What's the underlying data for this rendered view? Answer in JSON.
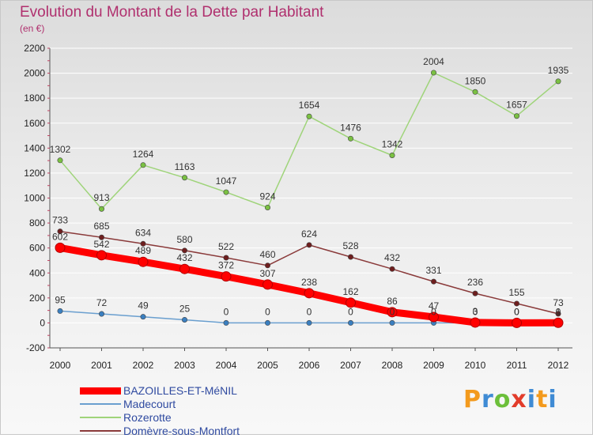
{
  "header": {
    "title": "Evolution du Montant de la Dette par Habitant",
    "subtitle": "(en €)"
  },
  "logo": {
    "text": "Proxiti"
  },
  "colors": {
    "title": "#b0306e",
    "legend_text": "#2f4aa0",
    "grid": "#ffffff",
    "axis": "#555555"
  },
  "chart_data": {
    "type": "line",
    "title": "Evolution du Montant de la Dette par Habitant",
    "subtitle": "(en €)",
    "xlabel": "",
    "ylabel": "",
    "x": [
      "2000",
      "2001",
      "2002",
      "2003",
      "2004",
      "2005",
      "2006",
      "2007",
      "2008",
      "2009",
      "2010",
      "2011",
      "2012"
    ],
    "ylim": [
      -200,
      2200
    ],
    "y_ticks": [
      -200,
      0,
      200,
      400,
      600,
      800,
      1000,
      1200,
      1400,
      1600,
      1800,
      2000,
      2200
    ],
    "grid": true,
    "legend_position": "bottom-left",
    "series": [
      {
        "name": "BAZOILLES-ET-MéNIL",
        "color": "#ff0000",
        "marker": "#d01010",
        "thick": true,
        "values": [
          602,
          542,
          489,
          432,
          372,
          307,
          238,
          162,
          86,
          47,
          3,
          0,
          1
        ],
        "labels": [
          "602",
          "542",
          "489",
          "432",
          "372",
          "307",
          "238",
          "162",
          "86",
          "47",
          "3",
          "0",
          "1"
        ]
      },
      {
        "name": "Madecourt",
        "color": "#6a9fcf",
        "marker": "#3a7fc0",
        "thick": false,
        "values": [
          95,
          72,
          49,
          25,
          0,
          0,
          0,
          0,
          0,
          0,
          0,
          0,
          0
        ],
        "labels": [
          "95",
          "72",
          "49",
          "25",
          "0",
          "0",
          "0",
          "0",
          "0",
          "0",
          "0",
          "0",
          "0"
        ]
      },
      {
        "name": "Rozerotte",
        "color": "#9fd47a",
        "marker": "#7ac142",
        "thick": false,
        "values": [
          1302,
          913,
          1264,
          1163,
          1047,
          924,
          1654,
          1476,
          1342,
          2004,
          1850,
          1657,
          1935
        ],
        "labels": [
          "1302",
          "913",
          "1264",
          "1163",
          "1047",
          "924",
          "1654",
          "1476",
          "1342",
          "2004",
          "1850",
          "1657",
          "1935"
        ]
      },
      {
        "name": "Domèvre-sous-Montfort",
        "color": "#8a3a3a",
        "marker": "#6e1e1e",
        "thick": false,
        "values": [
          733,
          685,
          634,
          580,
          522,
          460,
          624,
          528,
          432,
          331,
          236,
          155,
          73
        ],
        "labels": [
          "733",
          "685",
          "634",
          "580",
          "522",
          "460",
          "624",
          "528",
          "432",
          "331",
          "236",
          "155",
          "73"
        ]
      }
    ]
  }
}
